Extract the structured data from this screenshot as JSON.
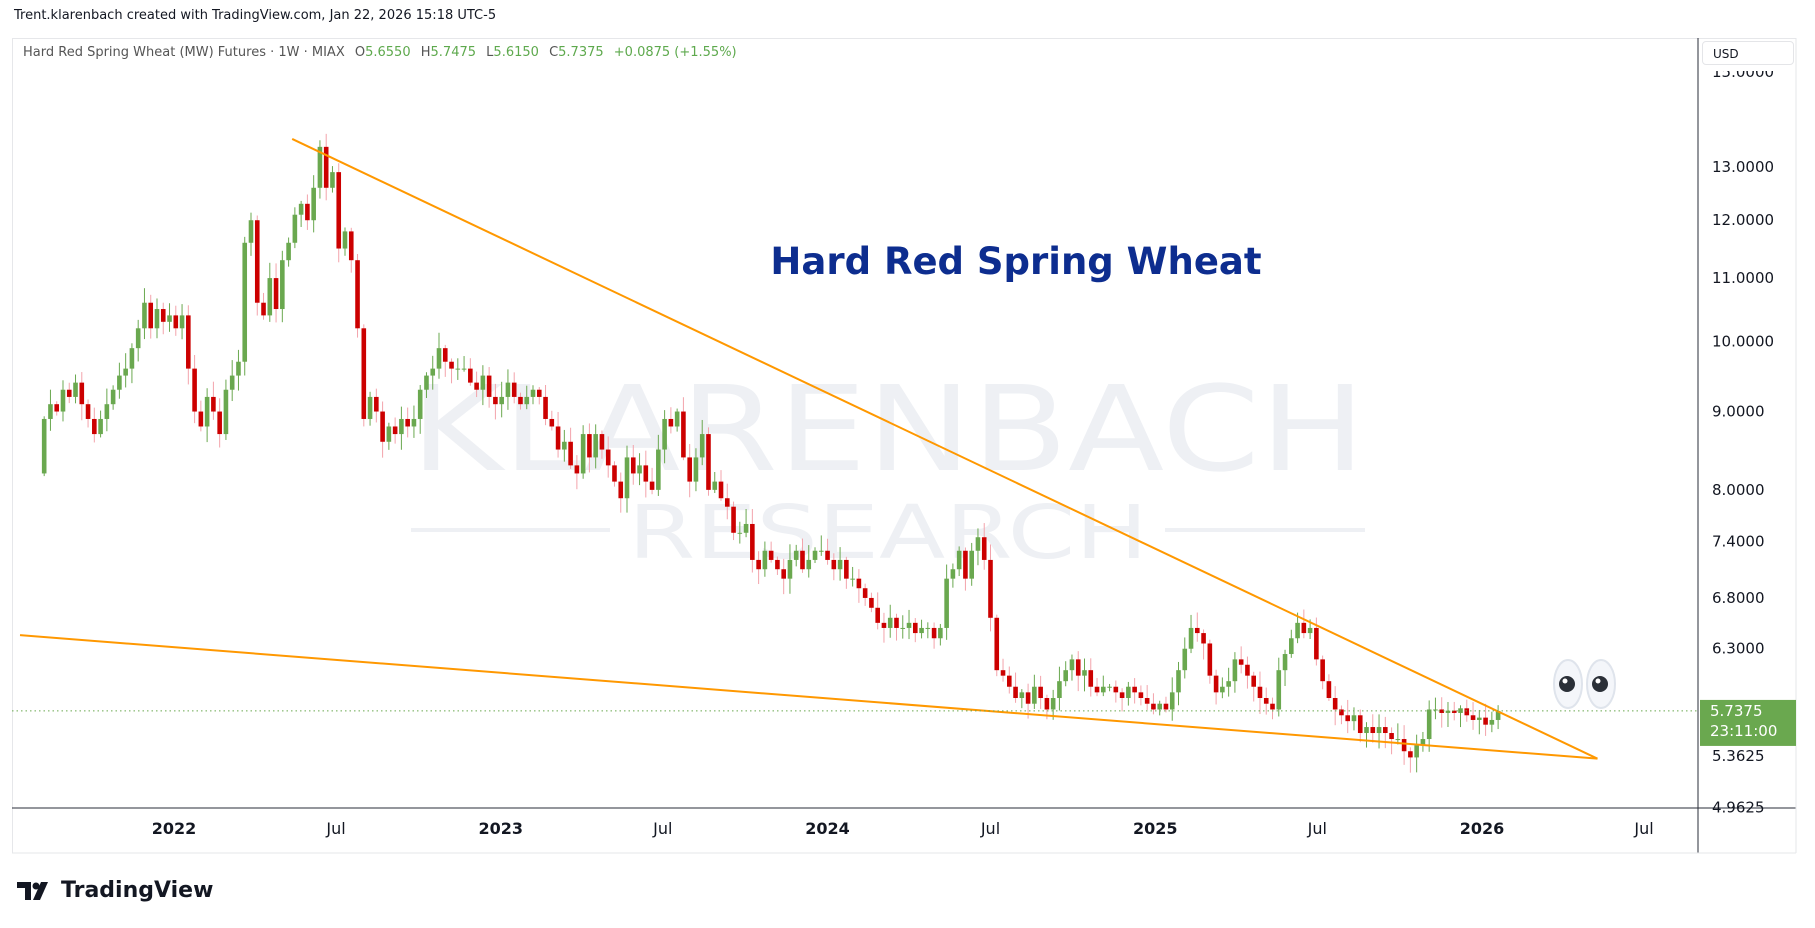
{
  "attribution": "Trent.klarenbach created with TradingView.com, Jan 22, 2026 15:18 UTC-5",
  "legend": {
    "symbol": "Hard Red Spring Wheat (MW) Futures · 1W · MIAX",
    "open_label": "O",
    "open": "5.6550",
    "high_label": "H",
    "high": "5.7475",
    "low_label": "L",
    "low": "5.6150",
    "close_label": "C",
    "close": "5.7375",
    "change": "+0.0875 (+1.55%)"
  },
  "currency_button": "USD",
  "brand": "TradingView",
  "colors": {
    "up": "#6aa84f",
    "down": "#cc0000",
    "down_wick": "#f3a3ab",
    "trendline": "#ff9800",
    "title": "#0d2d8f",
    "price_label": "#6aa84f"
  },
  "chart_data": {
    "type": "candlestick",
    "title": "Hard Red Spring Wheat",
    "watermark": [
      "KLARENBACH",
      "RESEARCH"
    ],
    "y_scale": "log",
    "ylim": [
      4.9,
      15.5
    ],
    "y_ticks": [
      "15.0000",
      "13.0000",
      "12.0000",
      "11.0000",
      "10.0000",
      "9.0000",
      "8.0000",
      "7.4000",
      "6.8000",
      "6.3000",
      "5.3625",
      "4.9625"
    ],
    "x_ticks": [
      {
        "label": "2022",
        "date": "2022-01-01",
        "bold": true
      },
      {
        "label": "Jul",
        "date": "2022-07-01"
      },
      {
        "label": "2023",
        "date": "2023-01-01",
        "bold": true
      },
      {
        "label": "Jul",
        "date": "2023-07-01"
      },
      {
        "label": "2024",
        "date": "2024-01-01",
        "bold": true
      },
      {
        "label": "Jul",
        "date": "2024-07-01"
      },
      {
        "label": "2025",
        "date": "2025-01-01",
        "bold": true
      },
      {
        "label": "Jul",
        "date": "2025-07-01"
      },
      {
        "label": "2026",
        "date": "2026-01-01",
        "bold": true
      },
      {
        "label": "Jul",
        "date": "2026-07-01"
      }
    ],
    "interval": "1W",
    "last_bar_date": "2026-01-19",
    "first_open": 8.2,
    "weekly_closes": [
      8.9,
      9.1,
      9.0,
      9.3,
      9.2,
      9.4,
      9.1,
      8.9,
      8.7,
      8.9,
      9.1,
      9.3,
      9.5,
      9.6,
      9.9,
      10.2,
      10.6,
      10.2,
      10.5,
      10.3,
      10.4,
      10.2,
      10.4,
      9.6,
      9.0,
      8.8,
      9.2,
      9.0,
      8.7,
      9.3,
      9.5,
      9.7,
      11.6,
      12.0,
      10.6,
      10.4,
      11.0,
      10.5,
      11.3,
      11.6,
      12.1,
      12.3,
      12.0,
      12.6,
      13.4,
      12.6,
      12.9,
      11.5,
      11.8,
      11.3,
      10.2,
      8.9,
      9.2,
      9.0,
      8.6,
      8.8,
      8.7,
      8.9,
      8.8,
      8.9,
      9.3,
      9.5,
      9.6,
      9.9,
      9.7,
      9.6,
      9.6,
      9.6,
      9.4,
      9.3,
      9.5,
      9.2,
      9.1,
      9.2,
      9.4,
      9.2,
      9.1,
      9.2,
      9.3,
      9.2,
      8.9,
      8.8,
      8.5,
      8.6,
      8.3,
      8.2,
      8.7,
      8.4,
      8.7,
      8.5,
      8.3,
      8.1,
      7.9,
      8.4,
      8.2,
      8.3,
      8.1,
      8.0,
      8.5,
      8.9,
      8.8,
      9.0,
      8.4,
      8.1,
      8.4,
      8.7,
      8.0,
      8.1,
      7.9,
      7.8,
      7.5,
      7.5,
      7.6,
      7.2,
      7.1,
      7.3,
      7.2,
      7.1,
      7.0,
      7.2,
      7.3,
      7.1,
      7.2,
      7.3,
      7.3,
      7.2,
      7.1,
      7.2,
      7.0,
      7.0,
      6.9,
      6.8,
      6.7,
      6.55,
      6.5,
      6.6,
      6.5,
      6.5,
      6.55,
      6.45,
      6.5,
      6.5,
      6.4,
      6.5,
      7.0,
      7.1,
      7.3,
      7.0,
      7.3,
      7.45,
      7.2,
      6.6,
      6.1,
      6.05,
      5.95,
      5.85,
      5.9,
      5.8,
      5.95,
      5.85,
      5.75,
      5.85,
      6.0,
      6.1,
      6.2,
      6.05,
      6.1,
      5.95,
      5.9,
      5.95,
      5.95,
      5.9,
      5.85,
      5.95,
      5.9,
      5.85,
      5.8,
      5.75,
      5.8,
      5.75,
      5.9,
      6.1,
      6.3,
      6.5,
      6.45,
      6.35,
      6.05,
      5.9,
      5.95,
      6.0,
      6.2,
      6.15,
      6.05,
      5.95,
      5.85,
      5.8,
      5.75,
      6.1,
      6.25,
      6.4,
      6.55,
      6.45,
      6.5,
      6.2,
      6.0,
      5.85,
      5.75,
      5.7,
      5.65,
      5.7,
      5.55,
      5.6,
      5.55,
      5.6,
      5.55,
      5.5,
      5.5,
      5.4,
      5.35,
      5.45,
      5.5,
      5.75,
      5.75,
      5.72,
      5.74,
      5.72,
      5.76,
      5.7,
      5.66,
      5.68,
      5.62,
      5.66,
      5.7375
    ],
    "trendlines": [
      {
        "from": {
          "date": "2022-05-13",
          "price": 13.56
        },
        "to": {
          "date": "2026-05-10",
          "price": 5.34
        }
      },
      {
        "from": {
          "date": "2021-07-13",
          "price": 6.43
        },
        "to": {
          "date": "2026-05-10",
          "price": 5.34
        }
      }
    ],
    "last_price": "5.7375",
    "countdown": "23:11:00",
    "annotation_icon": "eyes-icon"
  }
}
